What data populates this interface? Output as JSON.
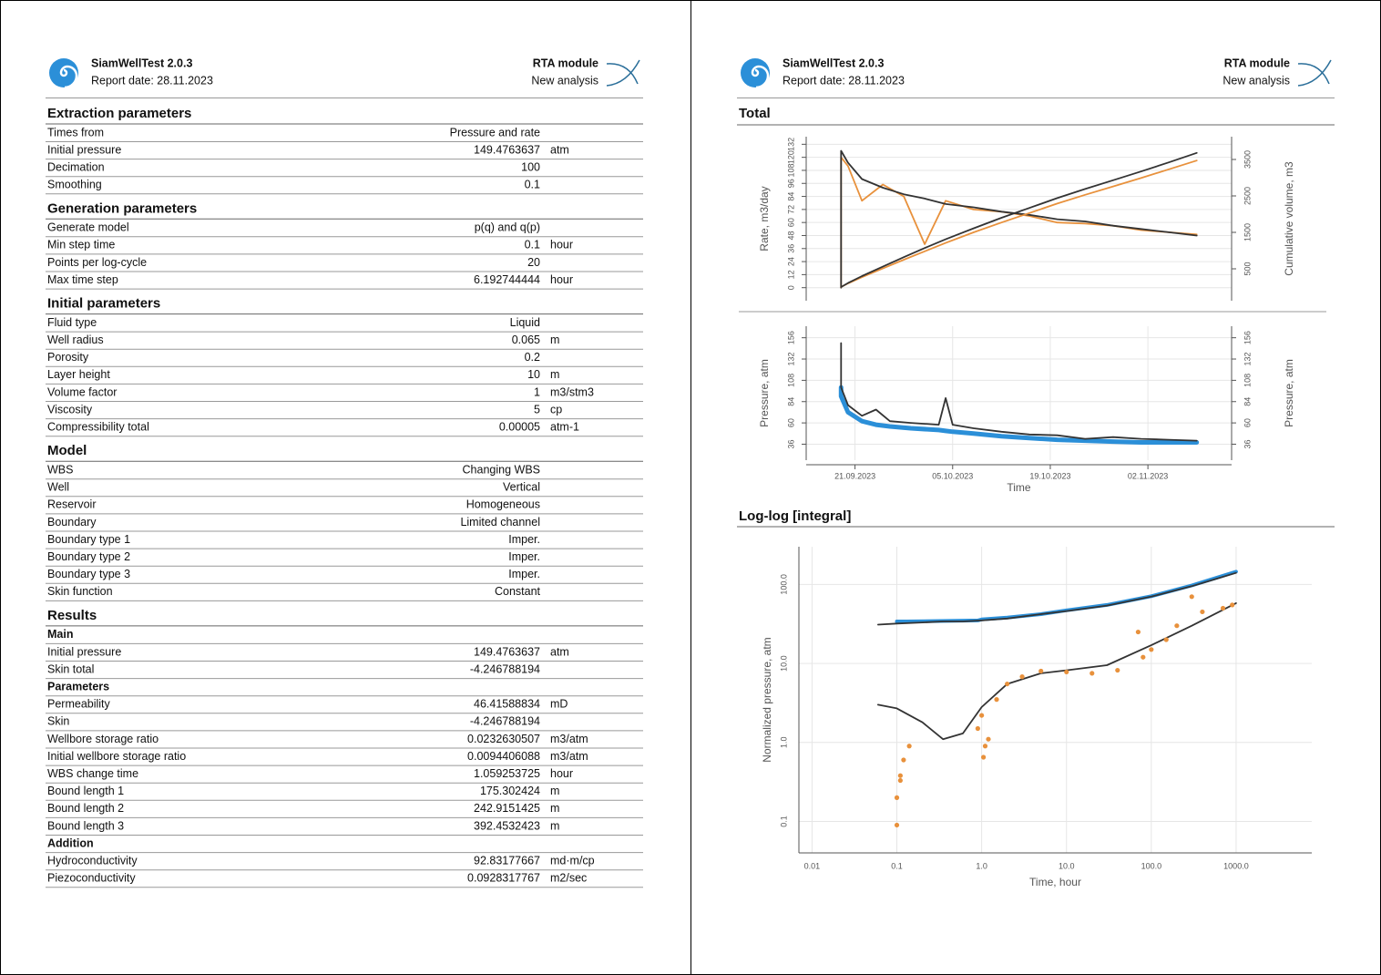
{
  "header": {
    "app": "SiamWellTest 2.0.3",
    "report_date": "Report date: 28.11.2023",
    "module": "RTA module",
    "analysis": "New analysis"
  },
  "sections": [
    {
      "title": "Extraction parameters",
      "rows": [
        {
          "label": "Times from",
          "value": "Pressure and rate"
        },
        {
          "label": "Initial pressure",
          "value": "149.4763637",
          "unit": "atm"
        },
        {
          "label": "Decimation",
          "value": "100"
        },
        {
          "label": "Smoothing",
          "value": "0.1"
        }
      ]
    },
    {
      "title": "Generation parameters",
      "rows": [
        {
          "label": "Generate model",
          "value": "p(q) and q(p)"
        },
        {
          "label": "Min step time",
          "value": "0.1",
          "unit": "hour"
        },
        {
          "label": "Points per log-cycle",
          "value": "20"
        },
        {
          "label": "Max time step",
          "value": "6.192744444",
          "unit": "hour"
        }
      ]
    },
    {
      "title": "Initial parameters",
      "rows": [
        {
          "label": "Fluid type",
          "value": "Liquid"
        },
        {
          "label": "Well radius",
          "value": "0.065",
          "unit": "m"
        },
        {
          "label": "Porosity",
          "value": "0.2"
        },
        {
          "label": "Layer height",
          "value": "10",
          "unit": "m"
        },
        {
          "label": "Volume factor",
          "value": "1",
          "unit": "m3/stm3"
        },
        {
          "label": "Viscosity",
          "value": "5",
          "unit": "cp"
        },
        {
          "label": "Compressibility total",
          "value": "0.00005",
          "unit": "atm-1"
        }
      ]
    },
    {
      "title": "Model",
      "rows": [
        {
          "label": "WBS",
          "value": "Changing WBS"
        },
        {
          "label": "Well",
          "value": "Vertical"
        },
        {
          "label": "Reservoir",
          "value": "Homogeneous"
        },
        {
          "label": "Boundary",
          "value": "Limited channel"
        },
        {
          "label": "Boundary type 1",
          "value": "Imper."
        },
        {
          "label": "Boundary type 2",
          "value": "Imper."
        },
        {
          "label": "Boundary type 3",
          "value": "Imper."
        },
        {
          "label": "Skin function",
          "value": "Constant"
        }
      ]
    },
    {
      "title": "Results",
      "groups": [
        {
          "title": "Main",
          "rows": [
            {
              "label": "Initial pressure",
              "value": "149.4763637",
              "unit": "atm"
            },
            {
              "label": "Skin total",
              "value": "-4.246788194"
            }
          ]
        },
        {
          "title": "Parameters",
          "rows": [
            {
              "label": "Permeability",
              "value": "46.41588834",
              "unit": "mD"
            },
            {
              "label": "Skin",
              "value": "-4.246788194"
            },
            {
              "label": "Wellbore storage ratio",
              "value": "0.0232630507",
              "unit": "m3/atm"
            },
            {
              "label": "Initial wellbore storage ratio",
              "value": "0.0094406088",
              "unit": "m3/atm"
            },
            {
              "label": "WBS change time",
              "value": "1.059253725",
              "unit": "hour"
            },
            {
              "label": "Bound length 1",
              "value": "175.302424",
              "unit": "m"
            },
            {
              "label": "Bound length 2",
              "value": "242.9151425",
              "unit": "m"
            },
            {
              "label": "Bound length 3",
              "value": "392.4532423",
              "unit": "m"
            }
          ]
        },
        {
          "title": "Addition",
          "rows": [
            {
              "label": "Hydroconductivity",
              "value": "92.83177667",
              "unit": "md·m/cp"
            },
            {
              "label": "Piezoconductivity",
              "value": "0.0928317767",
              "unit": "m2/sec"
            }
          ]
        }
      ]
    }
  ],
  "chart_data": [
    {
      "type": "line",
      "title": "Total",
      "ylabel": "Rate, m3/day",
      "y2label": "Cumulative volume, m3",
      "x": [
        "19.09.2023",
        "19.09.2023",
        "20.09.2023",
        "22.09.2023",
        "25.09.2023",
        "28.09.2023",
        "01.10.2023",
        "04.10.2023",
        "08.10.2023",
        "12.10.2023",
        "16.10.2023",
        "20.10.2023",
        "24.10.2023",
        "28.10.2023",
        "01.11.2023",
        "05.11.2023",
        "09.11.2023"
      ],
      "xlim": [
        "14.09.2023",
        "14.11.2023"
      ],
      "ylim": [
        -12,
        139
      ],
      "yticks": [
        0,
        12,
        24,
        36,
        48,
        60,
        72,
        84,
        96,
        108,
        120,
        132
      ],
      "y2lim": [
        -375,
        4125
      ],
      "y2ticks": [
        500,
        1500,
        2500,
        3500
      ],
      "grid": true,
      "series": [
        {
          "color": "#e8913c",
          "values": [
            0,
            120,
            112,
            80,
            95,
            84,
            40,
            80,
            72,
            70,
            66,
            60,
            59,
            57,
            53,
            51,
            49
          ]
        },
        {
          "color": "#333333",
          "values": [
            0,
            126,
            115,
            100,
            92,
            86,
            82,
            77,
            74,
            70,
            67,
            63,
            61,
            57,
            54,
            51,
            48
          ]
        },
        {
          "color": "#e8913c",
          "axis": "y2",
          "values": [
            0,
            0,
            100,
            270,
            510,
            750,
            980,
            1210,
            1500,
            1770,
            2030,
            2290,
            2530,
            2760,
            2990,
            3230,
            3470
          ]
        },
        {
          "color": "#333333",
          "axis": "y2",
          "values": [
            0,
            0,
            110,
            300,
            560,
            820,
            1070,
            1310,
            1610,
            1900,
            2170,
            2440,
            2690,
            2930,
            3170,
            3420,
            3680
          ]
        }
      ]
    },
    {
      "type": "line",
      "xlabel": "Time",
      "ylabel": "Pressure, atm",
      "y2label": "Pressure, atm",
      "mirror_y": true,
      "x": [
        "19.09.2023",
        "19.09.2023",
        "20.09.2023",
        "22.09.2023",
        "24.09.2023",
        "26.09.2023",
        "29.09.2023",
        "03.10.2023",
        "04.10.2023",
        "05.10.2023",
        "08.10.2023",
        "12.10.2023",
        "16.10.2023",
        "20.10.2023",
        "24.10.2023",
        "28.10.2023",
        "01.11.2023",
        "05.11.2023",
        "09.11.2023"
      ],
      "xlim": [
        "14.09.2023",
        "14.11.2023"
      ],
      "xticks": [
        "21.09.2023",
        "05.10.2023",
        "19.10.2023",
        "02.11.2023"
      ],
      "ylim": [
        18,
        169
      ],
      "yticks": [
        36,
        60,
        84,
        108,
        132,
        156
      ],
      "grid": true,
      "series": [
        {
          "color": "#2b8fd8",
          "line_width": 5,
          "values": [
            100,
            90,
            72,
            62,
            58,
            56,
            54,
            52,
            51,
            50,
            48,
            45,
            43,
            41,
            40,
            39,
            38,
            38,
            38
          ]
        },
        {
          "color": "#333333",
          "values": [
            150,
            100,
            80,
            68,
            75,
            62,
            60,
            58,
            88,
            58,
            54,
            50,
            47,
            46,
            42,
            44,
            42,
            41,
            40
          ]
        }
      ]
    },
    {
      "type": "line",
      "title": "Log-log [integral]",
      "xlabel": "Time, hour",
      "ylabel": "Normalized pressure, atm",
      "log_x": true,
      "log_y": true,
      "xlim": [
        0.007,
        7800
      ],
      "ylim": [
        0.04,
        300
      ],
      "xticks": [
        0.01,
        0.1,
        {
          "value": 1,
          "label": "1.0"
        },
        {
          "value": 10,
          "label": "10.0"
        },
        {
          "value": 100,
          "label": "100.0"
        },
        {
          "value": 1000,
          "label": "1000.0"
        }
      ],
      "yticks": [
        0.1,
        {
          "value": 1,
          "label": "1.0"
        },
        {
          "value": 10,
          "label": "10.0"
        },
        {
          "value": 100,
          "label": "100.0"
        }
      ],
      "grid": true,
      "series": [
        {
          "color": "#2b8fd8",
          "line_width": 4,
          "x": [
            0.1,
            0.13,
            0.9,
            1,
            2,
            5,
            10,
            30,
            100,
            300,
            1000
          ],
          "values": [
            34,
            34,
            35,
            36,
            38,
            42,
            47,
            55,
            71,
            97,
            145
          ]
        },
        {
          "color": "#333333",
          "x": [
            0.06,
            0.1,
            0.2,
            0.35,
            0.6,
            1,
            2,
            5,
            10,
            30,
            100,
            300,
            1000
          ],
          "values": [
            31,
            32,
            33,
            34,
            34,
            35,
            37,
            42,
            46,
            54,
            70,
            95,
            140
          ]
        },
        {
          "color": "#333333",
          "x": [
            0.06,
            0.1,
            0.2,
            0.35,
            0.6,
            1,
            2,
            5,
            10,
            30,
            100,
            300,
            1000
          ],
          "values": [
            3.0,
            2.7,
            1.8,
            1.1,
            1.3,
            2.8,
            5.5,
            7.5,
            8.2,
            9.5,
            17,
            30,
            58
          ]
        },
        {
          "type": "scatter",
          "color": "#e8913c",
          "x": [
            0.1,
            0.1,
            0.11,
            0.11,
            0.12,
            0.14,
            0.9,
            1,
            1.05,
            1.1,
            1.2,
            1.5,
            2,
            3,
            5,
            10,
            20,
            40,
            70,
            80,
            100,
            150,
            200,
            300,
            400,
            700,
            900
          ],
          "values": [
            0.09,
            0.2,
            0.33,
            0.38,
            0.6,
            0.9,
            1.5,
            2.2,
            0.65,
            0.9,
            1.1,
            3.5,
            5.5,
            6.8,
            8,
            7.8,
            7.5,
            8.2,
            25,
            12,
            15,
            20,
            30,
            70,
            45,
            50,
            55
          ]
        }
      ]
    }
  ]
}
